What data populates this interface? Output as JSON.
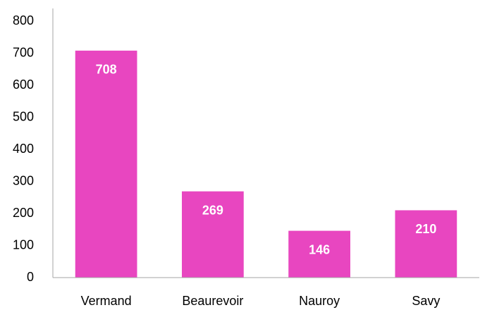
{
  "chart_data": {
    "type": "bar",
    "categories": [
      "Vermand",
      "Beaurevoir",
      "Nauroy",
      "Savy"
    ],
    "values": [
      708,
      269,
      146,
      210
    ],
    "color": "#e846c0",
    "ylim": [
      0,
      800
    ],
    "yticks": [
      0,
      100,
      200,
      300,
      400,
      500,
      600,
      700,
      800
    ],
    "grid": false
  }
}
